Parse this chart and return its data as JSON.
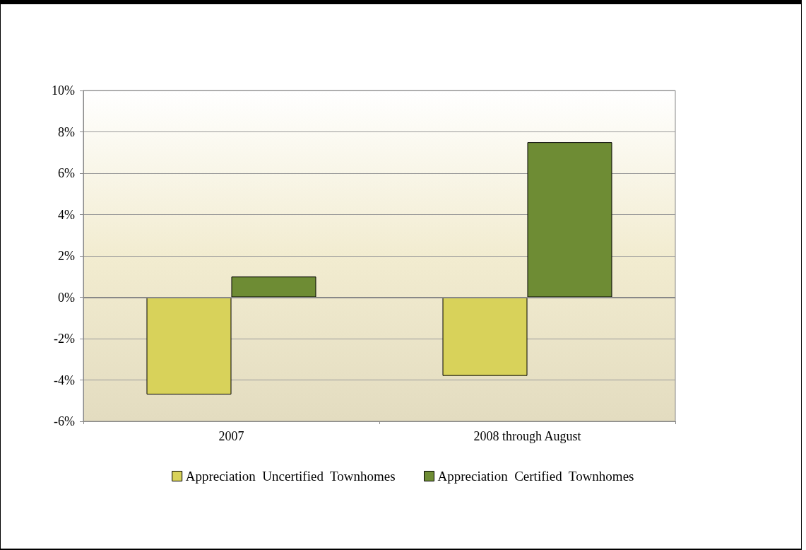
{
  "chart_data": {
    "type": "bar",
    "categories": [
      "2007",
      "2008 through August"
    ],
    "series": [
      {
        "name": "Appreciation  Uncertified  Townhomes",
        "color": "#d8d25a",
        "values": [
          -4.7,
          -3.8
        ]
      },
      {
        "name": "Appreciation  Certified  Townhomes",
        "color": "#6e8c34",
        "values": [
          1.0,
          7.5
        ]
      }
    ],
    "ylim": [
      -6,
      10
    ],
    "yticks": [
      {
        "value": -6,
        "label": "-6%"
      },
      {
        "value": -4,
        "label": "-4%"
      },
      {
        "value": -2,
        "label": "-2%"
      },
      {
        "value": 0,
        "label": "0%"
      },
      {
        "value": 2,
        "label": "2%"
      },
      {
        "value": 4,
        "label": "4%"
      },
      {
        "value": 6,
        "label": "6%"
      },
      {
        "value": 8,
        "label": "8%"
      },
      {
        "value": 10,
        "label": "10%"
      }
    ],
    "grid": "y",
    "legend": "bottom"
  }
}
